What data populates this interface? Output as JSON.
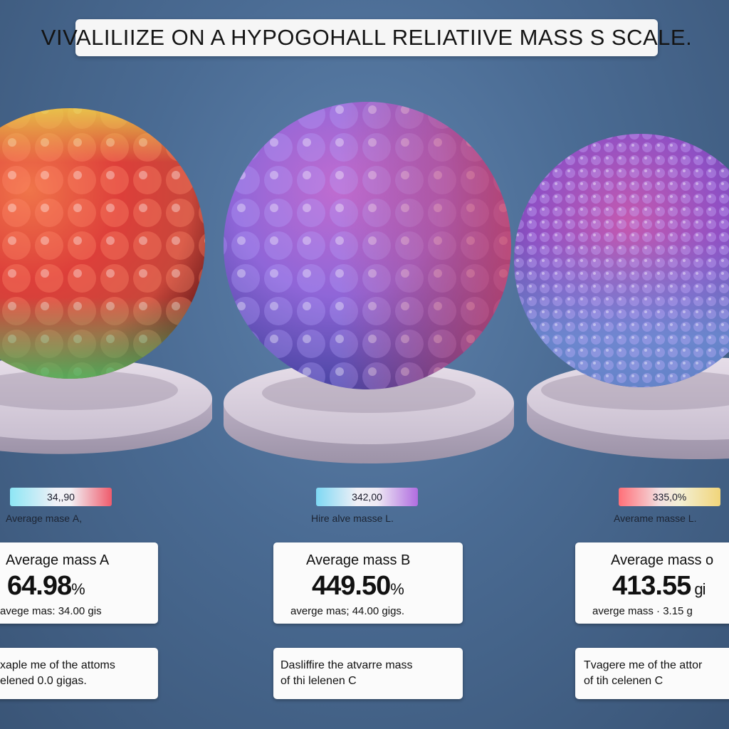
{
  "title": "VIVALILIIZE ON  A HYPOGOHALL RELIATIIVE MASS S SCALE.",
  "items": [
    {
      "chip_label": "34,,90",
      "sub_label": "Averagе mаsе A,",
      "card_heading": "Average mass A",
      "card_value": "64.98",
      "card_value_unit": "%",
      "card_subtext": "avege mas:  34.00 gis",
      "desc_line1": "xaple me of the attoms",
      "desc_line2": "elened 0.0 gigas."
    },
    {
      "chip_label": "342,00",
      "sub_label": "Hire alve masse L.",
      "card_heading": "Average mass B",
      "card_value": "449.50",
      "card_value_unit": "%",
      "card_subtext": "averge mas;  44.00 gigs.",
      "desc_line1": "Dasliffire the atvarre mass",
      "desc_line2": "of thi lelenen C"
    },
    {
      "chip_label": "335,0%",
      "sub_label": "Averame masse L.",
      "card_heading": "Average mass o",
      "card_value": "413.55",
      "card_value_unit": " gi",
      "card_subtext": "averge mass · 3.15 g",
      "desc_line1": "Tvagere me of the attor",
      "desc_line2": "of tih celenen C"
    }
  ],
  "colors": {
    "background": "#4a6b93",
    "sphere_a": [
      "#e8d24a",
      "#e0463e",
      "#54b860"
    ],
    "sphere_b": [
      "#d9405a",
      "#9a62d8",
      "#5d72e0"
    ],
    "sphere_c": [
      "#b84aa8",
      "#8058c8",
      "#6a9ad8"
    ]
  }
}
